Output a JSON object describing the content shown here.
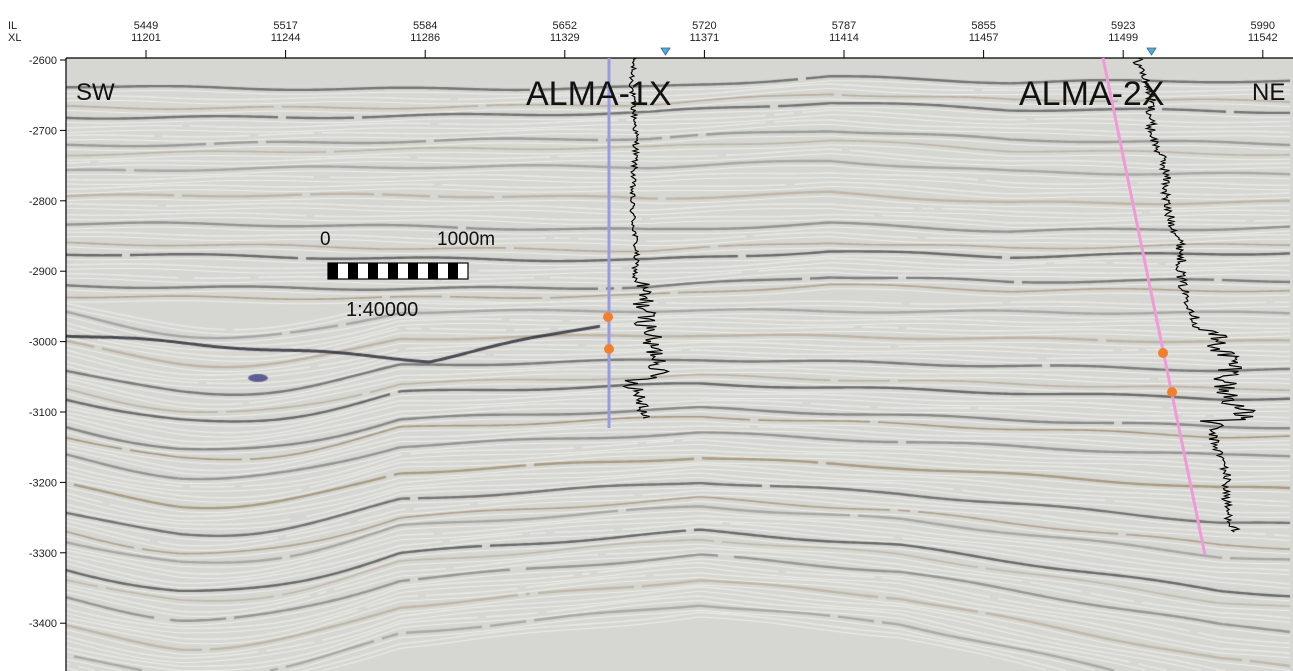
{
  "axis": {
    "il_title": "IL",
    "xl_title": "XL",
    "top_ticks": [
      {
        "il": "5449",
        "xl": "11201"
      },
      {
        "il": "5517",
        "xl": "11244"
      },
      {
        "il": "5584",
        "xl": "11286"
      },
      {
        "il": "5652",
        "xl": "11329"
      },
      {
        "il": "5720",
        "xl": "11371"
      },
      {
        "il": "5787",
        "xl": "11414"
      },
      {
        "il": "5855",
        "xl": "11457"
      },
      {
        "il": "5923",
        "xl": "11499"
      },
      {
        "il": "5990",
        "xl": "11542"
      }
    ],
    "depth_ticks": [
      "-2600",
      "-2700",
      "-2800",
      "-2900",
      "-3000",
      "-3100",
      "-3200",
      "-3300",
      "-3400"
    ],
    "depth_range": [
      -2600,
      -3450
    ]
  },
  "section": {
    "left_label": "SW",
    "right_label": "NE"
  },
  "wells": [
    {
      "name": "ALMA-1X",
      "trajectory_color": "#9a9ae0"
    },
    {
      "name": "ALMA-2X",
      "trajectory_color": "#f09ad8"
    }
  ],
  "scale_bar": {
    "start_label": "0",
    "end_label": "1000m",
    "ratio_label": "1:40000"
  },
  "colors": {
    "marker": "#f08030",
    "well_head": "#5aaad8",
    "log_curve": "#000000"
  }
}
